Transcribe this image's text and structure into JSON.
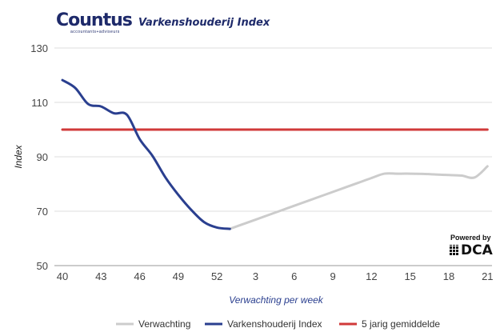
{
  "logo": {
    "name": "Countus",
    "tagline": "accountants+adviseurs"
  },
  "powered": {
    "label": "Powered by",
    "brand": "DCA"
  },
  "chart_data": {
    "type": "line",
    "title": "Varkenshouderij Index",
    "xlabel": "Verwachting per week",
    "ylabel": "Index",
    "ylim": [
      50,
      130
    ],
    "yticks": [
      50,
      70,
      90,
      110,
      130
    ],
    "x": [
      40,
      41,
      42,
      43,
      44,
      45,
      46,
      47,
      48,
      49,
      50,
      51,
      52,
      1,
      2,
      3,
      4,
      5,
      6,
      7,
      8,
      9,
      10,
      11,
      12,
      13,
      14,
      15,
      16,
      17,
      18,
      19,
      20,
      21
    ],
    "xtick_labels": [
      "40",
      "43",
      "46",
      "49",
      "52",
      "3",
      "6",
      "9",
      "12",
      "15",
      "18",
      "21"
    ],
    "grid": true,
    "legend_position": "bottom",
    "series": [
      {
        "name": "Verwachting",
        "color": "#cccccc",
        "values": [
          null,
          null,
          null,
          null,
          null,
          null,
          null,
          null,
          null,
          null,
          null,
          null,
          null,
          63.5,
          65.2,
          66.9,
          68.6,
          70.3,
          72.0,
          73.7,
          75.4,
          77.1,
          78.8,
          80.5,
          82.2,
          83.8,
          83.8,
          83.8,
          83.7,
          83.5,
          83.3,
          83.1,
          82.4,
          86.5
        ]
      },
      {
        "name": "Varkenshouderij Index",
        "color": "#2a3f8f",
        "values": [
          118.2,
          115.3,
          109.4,
          108.5,
          106.0,
          105.5,
          96.5,
          90.3,
          82.4,
          76.0,
          70.5,
          66.0,
          64.0,
          63.5,
          null,
          null,
          null,
          null,
          null,
          null,
          null,
          null,
          null,
          null,
          null,
          null,
          null,
          null,
          null,
          null,
          null,
          null,
          null,
          null
        ]
      },
      {
        "name": "5 jarig gemiddelde",
        "color": "#d03a3a",
        "values": [
          100,
          100,
          100,
          100,
          100,
          100,
          100,
          100,
          100,
          100,
          100,
          100,
          100,
          100,
          100,
          100,
          100,
          100,
          100,
          100,
          100,
          100,
          100,
          100,
          100,
          100,
          100,
          100,
          100,
          100,
          100,
          100,
          100,
          100
        ]
      }
    ]
  }
}
